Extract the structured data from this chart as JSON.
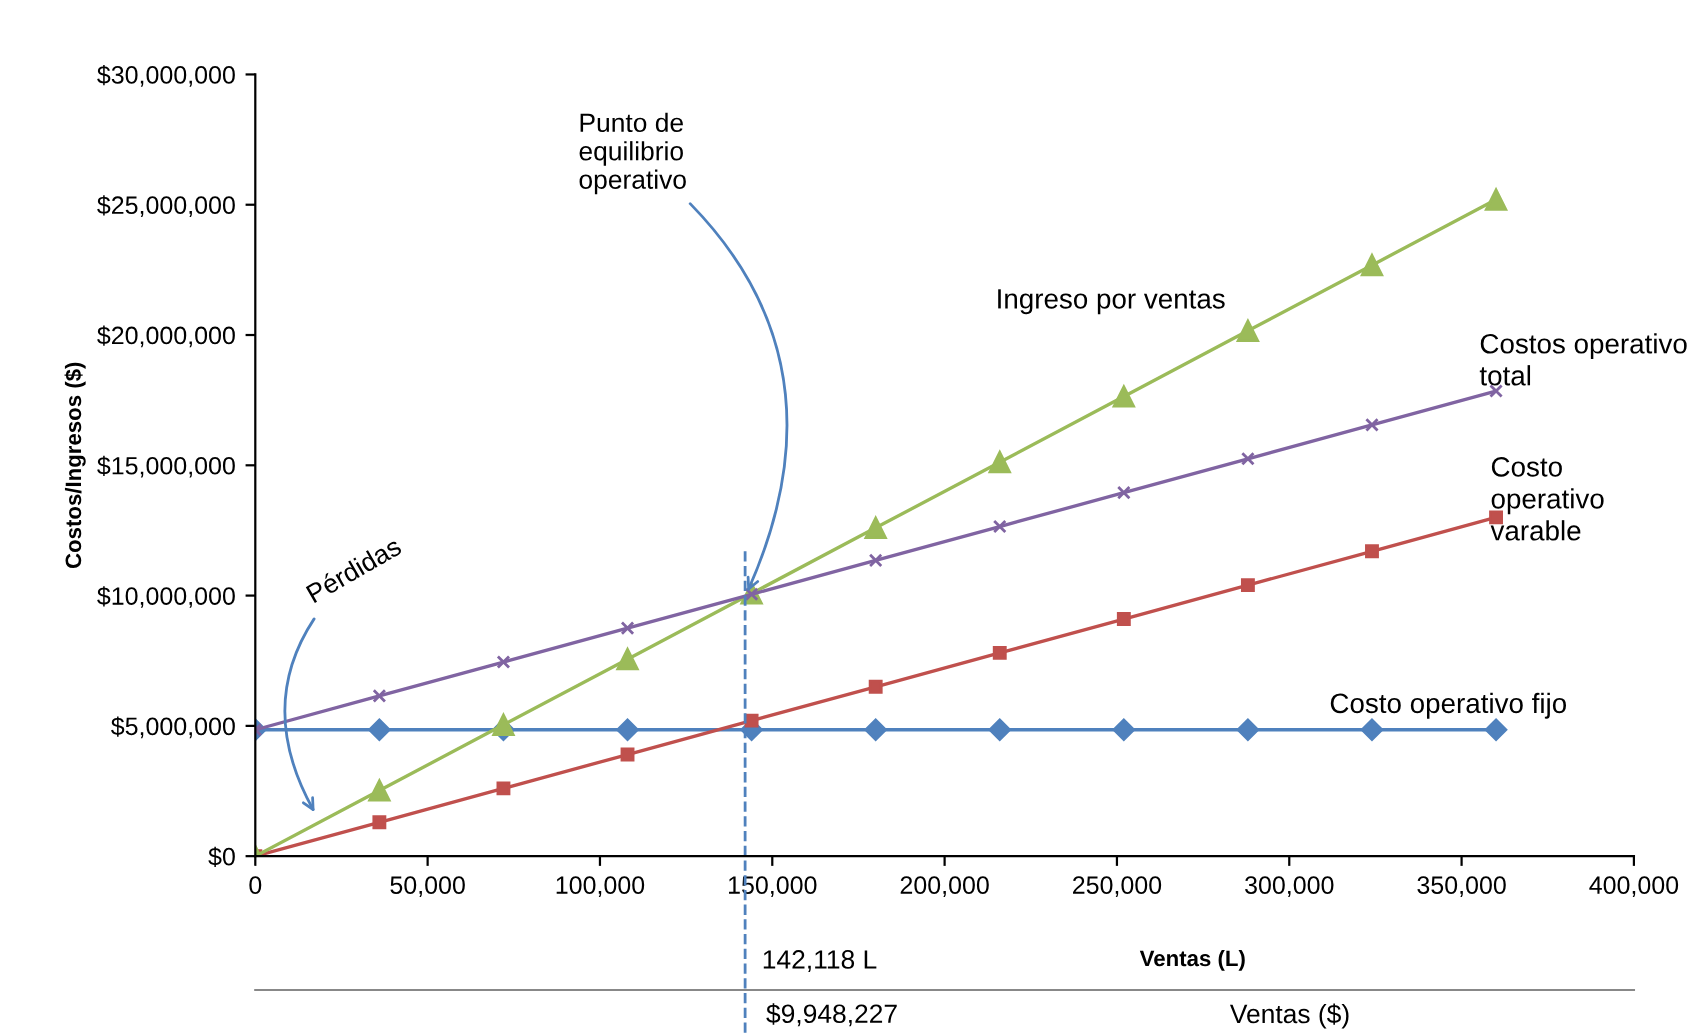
{
  "chart_data": {
    "type": "line",
    "ylabel": "Costos/Ingresos ($)",
    "xlabel": "Ventas (L)",
    "x": [
      0,
      36000,
      72000,
      108000,
      144000,
      180000,
      216000,
      252000,
      288000,
      324000,
      360000
    ],
    "series": [
      {
        "name": "Costo operativo fijo",
        "color": "#4f81bd",
        "marker": "diamond",
        "values": [
          4850000,
          4850000,
          4850000,
          4850000,
          4850000,
          4850000,
          4850000,
          4850000,
          4850000,
          4850000,
          4850000
        ]
      },
      {
        "name": "Costo\noperativo\nvarable",
        "color": "#c0504d",
        "marker": "square",
        "values": [
          0,
          1300000,
          2600000,
          3900000,
          5200000,
          6500000,
          7800000,
          9100000,
          10400000,
          11700000,
          13000000
        ]
      },
      {
        "name": "Ingreso por ventas",
        "color": "#9bbb59",
        "marker": "triangle",
        "values": [
          0,
          2520000,
          5040000,
          7560000,
          10080000,
          12600000,
          15120000,
          17640000,
          20160000,
          22680000,
          25200000
        ]
      },
      {
        "name": "Costos operativo\ntotal",
        "color": "#8064a2",
        "marker": "cross",
        "values": [
          4850000,
          6150000,
          7450000,
          8750000,
          10050000,
          11350000,
          12650000,
          13950000,
          15250000,
          16550000,
          17850000
        ]
      }
    ],
    "xlim": [
      0,
      400000
    ],
    "xticks": [
      0,
      {
        "value": 50000,
        "label": "50,000"
      },
      {
        "value": 100000,
        "label": "100,000"
      },
      {
        "value": 150000,
        "label": "150,000"
      },
      {
        "value": 200000,
        "label": "200,000"
      },
      {
        "value": 250000,
        "label": "250,000"
      },
      {
        "value": 300000,
        "label": "300,000"
      },
      {
        "value": 350000,
        "label": "350,000"
      },
      {
        "value": 400000,
        "label": "400,000"
      }
    ],
    "ylim": [
      0,
      30000000
    ],
    "yticks": [
      {
        "value": 0,
        "label": "$0"
      },
      {
        "value": 5000000,
        "label": "$5,000,000"
      },
      {
        "value": 10000000,
        "label": "$10,000,000"
      },
      {
        "value": 15000000,
        "label": "$15,000,000"
      },
      {
        "value": 20000000,
        "label": "$20,000,000"
      },
      {
        "value": 25000000,
        "label": "$25,000,000"
      },
      {
        "value": 30000000,
        "label": "$30,000,000"
      }
    ],
    "ref_lines": [
      {
        "axis": "x",
        "value": 142118,
        "label": "142,118 L",
        "color": "#4f81bd",
        "line_style": "dashed"
      }
    ],
    "annotations": [
      {
        "text": "Punto de\nequilibrio\noperativo",
        "x": 142118,
        "y": 9948227
      },
      {
        "text": "Pérdidas",
        "x": 18000,
        "y": 1500000
      },
      "$9,948,227",
      "Ventas ($)"
    ],
    "grid": false,
    "legend": false
  }
}
